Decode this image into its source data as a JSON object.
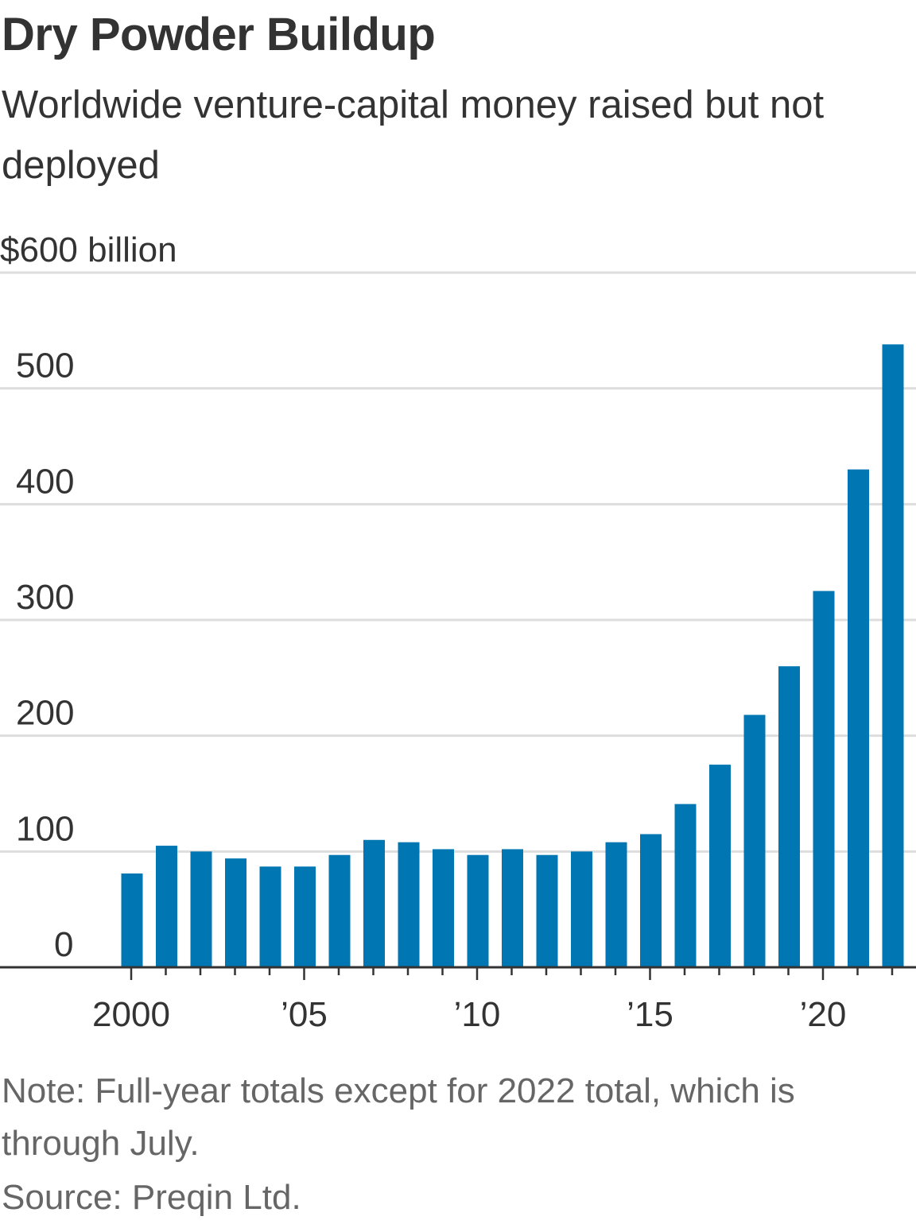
{
  "title": "Dry Powder Buildup",
  "subtitle": "Worldwide venture-capital money raised but not deployed",
  "note": "Note: Full-year totals except for 2022 total, which is through July.",
  "source": "Source: Preqin Ltd.",
  "colors": {
    "bar": "#0077b3",
    "grid": "#dddddd",
    "axis": "#333333",
    "text": "#333333",
    "muted": "#666666"
  },
  "chart_data": {
    "type": "bar",
    "title": "Dry Powder Buildup",
    "subtitle": "Worldwide venture-capital money raised but not deployed",
    "xlabel": "",
    "ylabel": "$600 billion",
    "ylim": [
      0,
      600
    ],
    "yticks": [
      0,
      100,
      200,
      300,
      400,
      500,
      600
    ],
    "ytick_labels": [
      "0",
      "100",
      "200",
      "300",
      "400",
      "500",
      "$600 billion"
    ],
    "xtick_labels": [
      {
        "year": 2000,
        "label": "2000"
      },
      {
        "year": 2005,
        "label": "’05"
      },
      {
        "year": 2010,
        "label": "’10"
      },
      {
        "year": 2015,
        "label": "’15"
      },
      {
        "year": 2020,
        "label": "’20"
      }
    ],
    "categories": [
      "2000",
      "2001",
      "2002",
      "2003",
      "2004",
      "2005",
      "2006",
      "2007",
      "2008",
      "2009",
      "2010",
      "2011",
      "2012",
      "2013",
      "2014",
      "2015",
      "2016",
      "2017",
      "2018",
      "2019",
      "2020",
      "2021",
      "2022"
    ],
    "values": [
      81,
      105,
      100,
      94,
      87,
      87,
      97,
      110,
      108,
      102,
      97,
      102,
      97,
      100,
      108,
      115,
      141,
      175,
      218,
      260,
      325,
      430,
      538
    ],
    "grid": true,
    "legend": "none"
  }
}
